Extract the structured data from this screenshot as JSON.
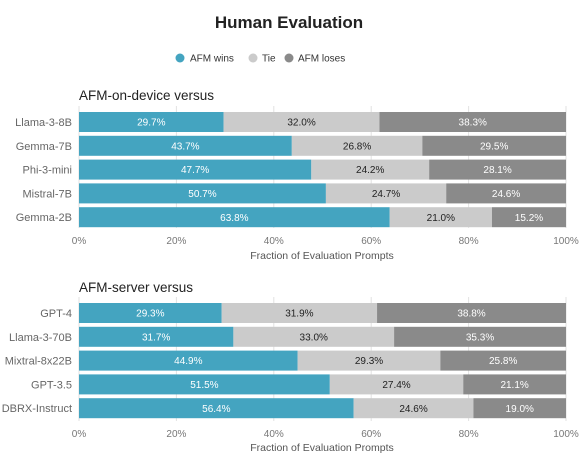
{
  "colors": {
    "afm_wins": "#44a4c0",
    "tie": "#cbcbcb",
    "afm_loses": "#8a8a8a"
  },
  "chart_data": {
    "type": "bar",
    "orientation": "horizontal",
    "stacked": true,
    "title": "Human Evaluation",
    "legend": {
      "placement": "top-center",
      "entries": [
        "AFM wins",
        "Tie",
        "AFM loses"
      ]
    },
    "series_names": [
      "AFM wins",
      "Tie",
      "AFM loses"
    ],
    "panels": [
      {
        "title": "AFM-on-device versus",
        "xlabel": "Fraction of Evaluation Prompts",
        "xlim": [
          0,
          100
        ],
        "x_ticks": [
          "0%",
          "20%",
          "40%",
          "60%",
          "80%",
          "100%"
        ],
        "grid": true,
        "categories": [
          "Llama-3-8B",
          "Gemma-7B",
          "Phi-3-mini",
          "Mistral-7B",
          "Gemma-2B"
        ],
        "values": [
          [
            29.7,
            32.0,
            38.3
          ],
          [
            43.7,
            26.8,
            29.5
          ],
          [
            47.7,
            24.2,
            28.1
          ],
          [
            50.7,
            24.7,
            24.6
          ],
          [
            63.8,
            21.0,
            15.2
          ]
        ],
        "labels": [
          [
            "29.7%",
            "32.0%",
            "38.3%"
          ],
          [
            "43.7%",
            "26.8%",
            "29.5%"
          ],
          [
            "47.7%",
            "24.2%",
            "28.1%"
          ],
          [
            "50.7%",
            "24.7%",
            "24.6%"
          ],
          [
            "63.8%",
            "21.0%",
            "15.2%"
          ]
        ]
      },
      {
        "title": "AFM-server versus",
        "xlabel": "Fraction of Evaluation Prompts",
        "xlim": [
          0,
          100
        ],
        "x_ticks": [
          "0%",
          "20%",
          "40%",
          "60%",
          "80%",
          "100%"
        ],
        "grid": true,
        "categories": [
          "GPT-4",
          "Llama-3-70B",
          "Mixtral-8x22B",
          "GPT-3.5",
          "DBRX-Instruct"
        ],
        "values": [
          [
            29.3,
            31.9,
            38.8
          ],
          [
            31.7,
            33.0,
            35.3
          ],
          [
            44.9,
            29.3,
            25.8
          ],
          [
            51.5,
            27.4,
            21.1
          ],
          [
            56.4,
            24.6,
            19.0
          ]
        ],
        "labels": [
          [
            "29.3%",
            "31.9%",
            "38.8%"
          ],
          [
            "31.7%",
            "33.0%",
            "35.3%"
          ],
          [
            "44.9%",
            "29.3%",
            "25.8%"
          ],
          [
            "51.5%",
            "27.4%",
            "21.1%"
          ],
          [
            "56.4%",
            "24.6%",
            "19.0%"
          ]
        ]
      }
    ]
  }
}
